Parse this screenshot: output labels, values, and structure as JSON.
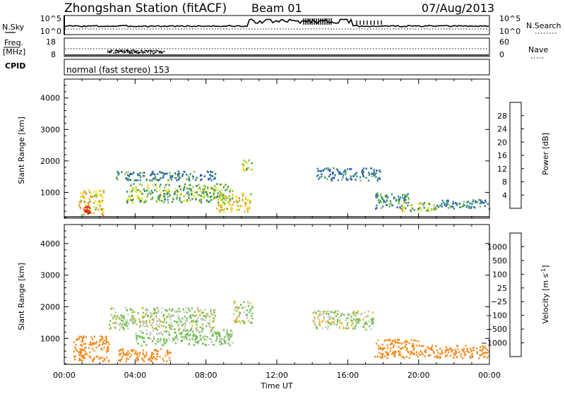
{
  "header": {
    "station": "Zhongshan Station (fitACF)",
    "beam": "Beam 01",
    "date": "07/Aug/2013"
  },
  "strip": {
    "nsky_label": "N.Sky",
    "nsearch_label": "N.Search",
    "nsky_ticks": [
      "10^5",
      "10^0"
    ],
    "nsearch_ticks": [
      "10^5",
      "10^0"
    ],
    "freq_label_line1": "Freq.",
    "freq_label_line2": "[MHz]",
    "freq_ticks": [
      "18",
      "8"
    ],
    "nave_label": "Nave",
    "nave_ticks": [
      "60",
      "0"
    ],
    "cpid_label": "CPID",
    "cpid_text": "normal (fast stereo) 153"
  },
  "colors": {
    "power_scale": [
      "#1a1aff",
      "#2d4fb5",
      "#2f7fa8",
      "#2e8b57",
      "#7cc242",
      "#f0e020",
      "#f5a623",
      "#ef7d1a",
      "#e8501a",
      "#e01010"
    ],
    "velocity_scale": [
      "#e01010",
      "#ef5a1a",
      "#f5891e",
      "#f5b81e",
      "#c8c8c0",
      "#6cc04a",
      "#3a9a5c",
      "#2f5fb0",
      "#2a3fbf"
    ]
  },
  "chart_data": [
    {
      "type": "heatmap",
      "name": "power",
      "xlabel": "",
      "ylabel": "Slant Range [km]",
      "x_ticks": [
        "00:00",
        "04:00",
        "08:00",
        "12:00",
        "16:00",
        "20:00",
        "00:00"
      ],
      "y_ticks": [
        1000,
        2000,
        3000,
        4000
      ],
      "xlim_hours": [
        0,
        24
      ],
      "ylim_km": [
        180,
        4600
      ],
      "colorbar": {
        "label": "Power [dB]",
        "ticks": [
          "28",
          "24",
          "20",
          "16",
          "12",
          "8",
          "4"
        ],
        "range": [
          0,
          30
        ]
      },
      "echo_regions": [
        {
          "t0": 0.8,
          "t1": 2.2,
          "r0": 300,
          "r1": 1100,
          "value": 18
        },
        {
          "t0": 1.1,
          "t1": 1.4,
          "r0": 350,
          "r1": 600,
          "value": 29
        },
        {
          "t0": 2.8,
          "t1": 8.5,
          "r0": 1400,
          "r1": 1700,
          "value": 9
        },
        {
          "t0": 3.5,
          "t1": 9.5,
          "r0": 700,
          "r1": 1300,
          "value": 13
        },
        {
          "t0": 8.5,
          "t1": 10.5,
          "r0": 400,
          "r1": 1000,
          "value": 17
        },
        {
          "t0": 10.0,
          "t1": 10.6,
          "r0": 1700,
          "r1": 2100,
          "value": 14
        },
        {
          "t0": 14.2,
          "t1": 17.8,
          "r0": 1400,
          "r1": 1800,
          "value": 8
        },
        {
          "t0": 17.5,
          "t1": 19.5,
          "r0": 500,
          "r1": 1000,
          "value": 10
        },
        {
          "t0": 19.0,
          "t1": 21.0,
          "r0": 400,
          "r1": 700,
          "value": 15
        },
        {
          "t0": 21.0,
          "t1": 24.0,
          "r0": 500,
          "r1": 800,
          "value": 9
        }
      ]
    },
    {
      "type": "heatmap",
      "name": "velocity",
      "xlabel": "Time UT",
      "ylabel": "Slant Range [km]",
      "x_ticks": [
        "00:00",
        "04:00",
        "08:00",
        "12:00",
        "16:00",
        "20:00",
        "00:00"
      ],
      "y_ticks": [
        1000,
        2000,
        3000,
        4000
      ],
      "xlim_hours": [
        0,
        24
      ],
      "ylim_km": [
        180,
        4600
      ],
      "colorbar": {
        "label": "Velocity [m s-1]",
        "ticks": [
          "1000",
          "500",
          "100",
          "25",
          "−25",
          "−100",
          "−500",
          "−1000"
        ],
        "range": [
          -1200,
          1200
        ]
      },
      "echo_regions": [
        {
          "t0": 0.5,
          "t1": 2.5,
          "r0": 300,
          "r1": 1100,
          "value": -300
        },
        {
          "t0": 2.5,
          "t1": 8.5,
          "r0": 1300,
          "r1": 2000,
          "value": 20
        },
        {
          "t0": 4.0,
          "t1": 9.5,
          "r0": 800,
          "r1": 1300,
          "value": 40
        },
        {
          "t0": 3.0,
          "t1": 6.0,
          "r0": 300,
          "r1": 700,
          "value": -200
        },
        {
          "t0": 9.5,
          "t1": 10.6,
          "r0": 1500,
          "r1": 2200,
          "value": 10
        },
        {
          "t0": 14.0,
          "t1": 17.5,
          "r0": 1300,
          "r1": 1900,
          "value": 15
        },
        {
          "t0": 17.5,
          "t1": 20.0,
          "r0": 400,
          "r1": 1000,
          "value": -150
        },
        {
          "t0": 20.0,
          "t1": 24.0,
          "r0": 400,
          "r1": 800,
          "value": -350
        }
      ]
    }
  ]
}
